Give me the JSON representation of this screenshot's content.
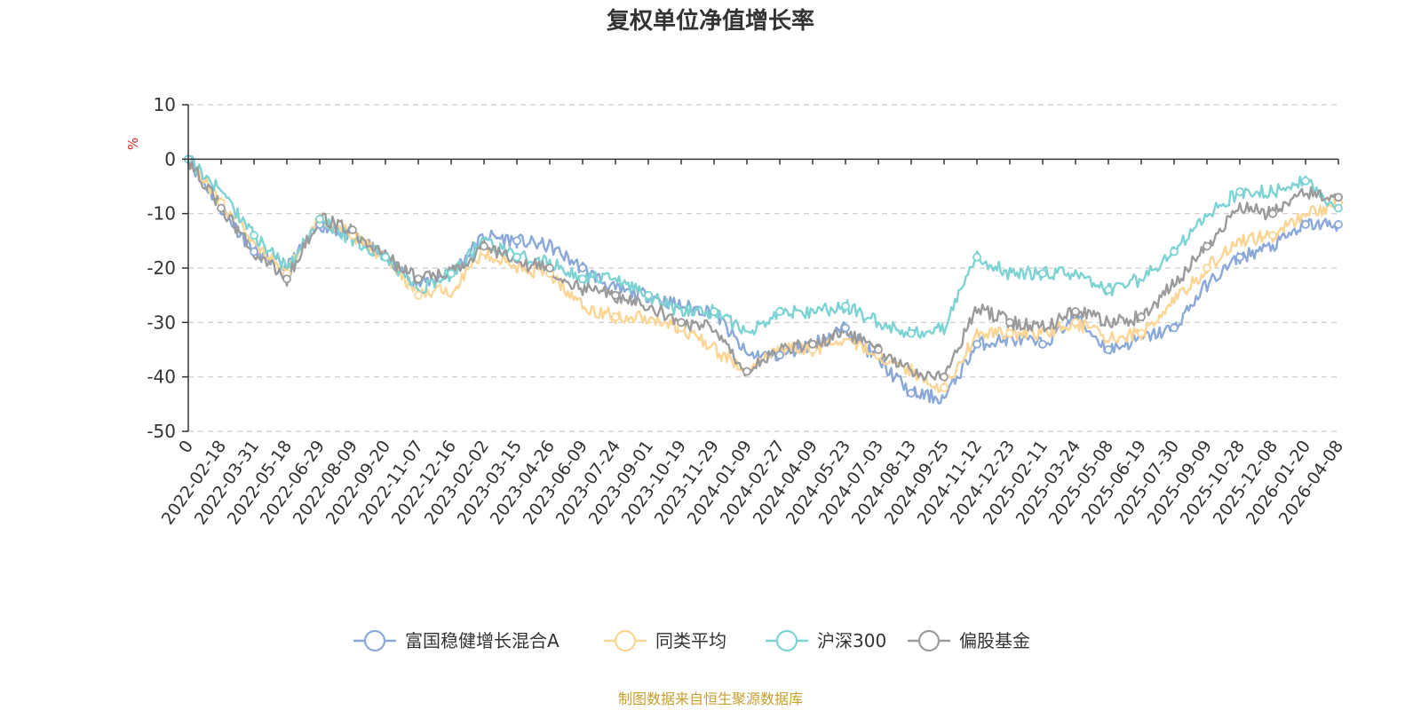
{
  "chart_data": {
    "type": "line",
    "title": "复权单位净值增长率",
    "ylabel": "%",
    "ylim": [
      -50,
      10
    ],
    "yticks": [
      10,
      0,
      -10,
      -20,
      -30,
      -40,
      -50
    ],
    "grid": true,
    "legend_position": "bottom",
    "x_labels": [
      "0",
      "2022-02-18",
      "2022-03-31",
      "2022-05-18",
      "2022-06-29",
      "2022-08-09",
      "2022-09-20",
      "2022-11-07",
      "2022-12-16",
      "2023-02-02",
      "2023-03-15",
      "2023-04-26",
      "2023-06-09",
      "2023-07-24",
      "2023-09-01",
      "2023-10-19",
      "2023-11-29",
      "2024-01-09",
      "2024-02-27",
      "2024-04-09",
      "2024-05-23",
      "2024-07-03",
      "2024-08-13",
      "2024-09-25",
      "2024-11-12",
      "2024-12-23",
      "2025-02-11",
      "2025-03-24",
      "2025-05-08",
      "2025-06-19",
      "2025-07-30",
      "2025-09-09",
      "2025-10-28",
      "2025-12-08",
      "2026-01-20",
      "2026-04-08"
    ],
    "x": [
      0,
      1,
      2,
      3,
      4,
      5,
      6,
      7,
      8,
      9,
      10,
      11,
      12,
      13,
      14,
      15,
      16,
      17,
      18,
      19,
      20,
      21,
      22,
      23,
      24,
      25,
      26,
      27,
      28,
      29,
      30,
      31,
      32,
      33,
      34,
      35
    ],
    "series": [
      {
        "name": "富国稳健增长混合A",
        "color": "#8aa8d8",
        "values": [
          0,
          -9,
          -17,
          -20,
          -12,
          -14,
          -18,
          -23,
          -21,
          -14,
          -15,
          -16,
          -20,
          -24,
          -25,
          -27,
          -28,
          -36,
          -36,
          -34,
          -31,
          -37,
          -43,
          -44,
          -34,
          -33,
          -34,
          -29,
          -35,
          -33,
          -31,
          -23,
          -18,
          -16,
          -12,
          -12
        ]
      },
      {
        "name": "同类平均",
        "color": "#fcd594",
        "values": [
          0,
          -8,
          -15,
          -21,
          -11,
          -14,
          -18,
          -25,
          -24,
          -17,
          -20,
          -21,
          -27,
          -29,
          -29,
          -31,
          -35,
          -39,
          -35,
          -35,
          -33,
          -36,
          -39,
          -42,
          -32,
          -32,
          -32,
          -30,
          -33,
          -32,
          -26,
          -20,
          -15,
          -14,
          -10,
          -8
        ]
      },
      {
        "name": "沪深300",
        "color": "#7dd3d4",
        "values": [
          0,
          -6,
          -14,
          -20,
          -11,
          -15,
          -18,
          -24,
          -21,
          -15,
          -18,
          -19,
          -22,
          -22,
          -25,
          -28,
          -28,
          -32,
          -28,
          -28,
          -27,
          -30,
          -32,
          -31,
          -18,
          -21,
          -21,
          -21,
          -24,
          -22,
          -17,
          -10,
          -6,
          -6,
          -4,
          -9
        ]
      },
      {
        "name": "偏股基金",
        "color": "#9b9b9b",
        "values": [
          0,
          -9,
          -17,
          -22,
          -11,
          -13,
          -18,
          -22,
          -21,
          -16,
          -19,
          -20,
          -24,
          -25,
          -27,
          -30,
          -31,
          -39,
          -35,
          -34,
          -32,
          -35,
          -39,
          -40,
          -27,
          -30,
          -31,
          -28,
          -30,
          -29,
          -23,
          -16,
          -9,
          -10,
          -6,
          -7
        ]
      }
    ]
  },
  "footer": {
    "source": "制图数据来自恒生聚源数据库"
  }
}
